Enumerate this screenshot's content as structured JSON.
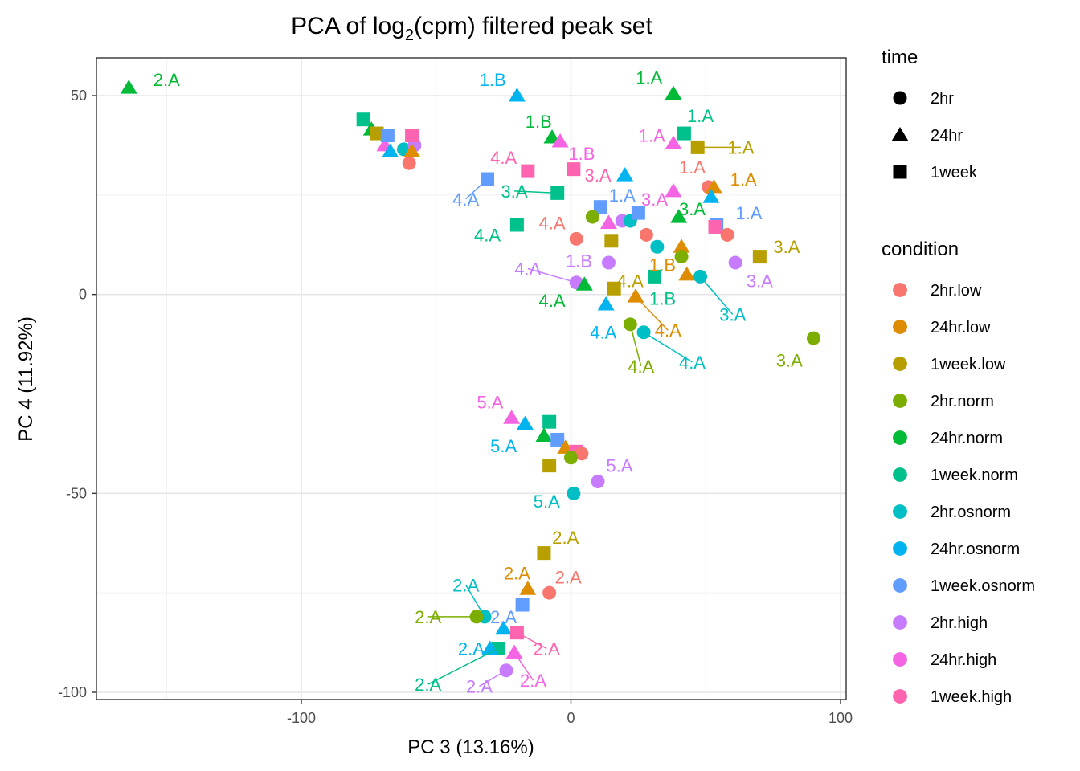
{
  "chart_data": {
    "type": "scatter",
    "title": "PCA of log",
    "title_sub": "2",
    "title_rest": "(cpm) filtered peak set",
    "xlabel": "PC 3 (13.16%)",
    "ylabel": "PC 4 (11.92%)",
    "xlim": [
      -176,
      101
    ],
    "ylim": [
      -102,
      60
    ],
    "xticks": [
      -100,
      0,
      100
    ],
    "yticks": [
      -100,
      -50,
      0,
      50
    ],
    "xtick_labels": [
      "-100",
      "0",
      "100"
    ],
    "ytick_labels": [
      "-100",
      "-50",
      "0",
      "50"
    ],
    "grid": true,
    "legend_position": "right",
    "shape_legend": {
      "title": "time",
      "items": [
        {
          "label": "2hr",
          "shape": "circle"
        },
        {
          "label": "24hr",
          "shape": "triangle"
        },
        {
          "label": "1week",
          "shape": "square"
        }
      ]
    },
    "color_legend": {
      "title": "condition",
      "items": [
        {
          "label": "2hr.low",
          "color": "#F8766D"
        },
        {
          "label": "24hr.low",
          "color": "#DE8C00"
        },
        {
          "label": "1week.low",
          "color": "#B79F00"
        },
        {
          "label": "2hr.norm",
          "color": "#7CAE00"
        },
        {
          "label": "24hr.norm",
          "color": "#00BA38"
        },
        {
          "label": "1week.norm",
          "color": "#00C08B"
        },
        {
          "label": "2hr.osnorm",
          "color": "#00BFC4"
        },
        {
          "label": "24hr.osnorm",
          "color": "#00B4F0"
        },
        {
          "label": "1week.osnorm",
          "color": "#619CFF"
        },
        {
          "label": "2hr.high",
          "color": "#C77CFF"
        },
        {
          "label": "24hr.high",
          "color": "#F564E3"
        },
        {
          "label": "1week.high",
          "color": "#FF64B0"
        }
      ]
    },
    "points": [
      {
        "x": -164,
        "y": 52,
        "c": "24hr.norm",
        "s": "triangle",
        "label": "2.A",
        "lx": -150,
        "ly": 54
      },
      {
        "x": -77,
        "y": 44,
        "c": "1week.norm",
        "s": "square"
      },
      {
        "x": -74,
        "y": 41.5,
        "c": "24hr.norm",
        "s": "triangle"
      },
      {
        "x": -72,
        "y": 40.5,
        "c": "1week.low",
        "s": "square"
      },
      {
        "x": -69,
        "y": 37.5,
        "c": "24hr.high",
        "s": "triangle"
      },
      {
        "x": -68,
        "y": 40,
        "c": "1week.osnorm",
        "s": "square"
      },
      {
        "x": -67,
        "y": 36,
        "c": "24hr.osnorm",
        "s": "triangle"
      },
      {
        "x": -62,
        "y": 36.5,
        "c": "2hr.osnorm",
        "s": "circle"
      },
      {
        "x": -60,
        "y": 33,
        "c": "2hr.low",
        "s": "circle"
      },
      {
        "x": -58,
        "y": 37.5,
        "c": "2hr.high",
        "s": "circle"
      },
      {
        "x": -59,
        "y": 40,
        "c": "1week.high",
        "s": "square"
      },
      {
        "x": -59,
        "y": 36,
        "c": "24hr.low",
        "s": "triangle"
      },
      {
        "x": -20,
        "y": 50,
        "c": "24hr.osnorm",
        "s": "triangle",
        "label": "1.B",
        "lx": -29,
        "ly": 54
      },
      {
        "x": 38,
        "y": 50.5,
        "c": "24hr.norm",
        "s": "triangle",
        "label": "1.A",
        "lx": 29,
        "ly": 54.5
      },
      {
        "x": 42,
        "y": 40.5,
        "c": "1week.norm",
        "s": "square",
        "label": "1.A",
        "lx": 48,
        "ly": 45
      },
      {
        "x": -7,
        "y": 39.5,
        "c": "24hr.norm",
        "s": "triangle",
        "label": "1.B",
        "lx": -12,
        "ly": 43.5
      },
      {
        "x": -4,
        "y": 38.5,
        "c": "24hr.high",
        "s": "triangle",
        "label": "1.B",
        "lx": 4,
        "ly": 35.5
      },
      {
        "x": 38,
        "y": 38,
        "c": "24hr.high",
        "s": "triangle",
        "label": "1.A",
        "lx": 30,
        "ly": 40
      },
      {
        "x": 47,
        "y": 37,
        "c": "1week.low",
        "s": "square",
        "label": "1.A",
        "lx": 63,
        "ly": 37,
        "line": true
      },
      {
        "x": -16,
        "y": 31,
        "c": "1week.high",
        "s": "square",
        "label": "4.A",
        "lx": -25,
        "ly": 34.5
      },
      {
        "x": 1,
        "y": 31.5,
        "c": "1week.high",
        "s": "square",
        "label": "3.A",
        "lx": 10,
        "ly": 30
      },
      {
        "x": 20,
        "y": 30,
        "c": "24hr.osnorm",
        "s": "triangle"
      },
      {
        "x": -31,
        "y": 29,
        "c": "1week.osnorm",
        "s": "square",
        "label": "4.A",
        "lx": -39,
        "ly": 24,
        "line": true
      },
      {
        "x": -5,
        "y": 25.5,
        "c": "1week.norm",
        "s": "square",
        "label": "3.A",
        "lx": -21,
        "ly": 26,
        "line": true
      },
      {
        "x": 38,
        "y": 26,
        "c": "24hr.high",
        "s": "triangle",
        "label": "3.A",
        "lx": 31,
        "ly": 24
      },
      {
        "x": 51,
        "y": 27,
        "c": "2hr.low",
        "s": "circle",
        "label": "1.A",
        "lx": 45,
        "ly": 32
      },
      {
        "x": 53,
        "y": 27,
        "c": "24hr.low",
        "s": "triangle",
        "label": "1.A",
        "lx": 64,
        "ly": 29
      },
      {
        "x": 11,
        "y": 22,
        "c": "1week.osnorm",
        "s": "square",
        "label": "1.A",
        "lx": 19,
        "ly": 25
      },
      {
        "x": 19,
        "y": 18.5,
        "c": "2hr.high",
        "s": "circle"
      },
      {
        "x": 22,
        "y": 18.5,
        "c": "2hr.osnorm",
        "s": "circle"
      },
      {
        "x": 25,
        "y": 20.5,
        "c": "1week.osnorm",
        "s": "square"
      },
      {
        "x": 40,
        "y": 19.5,
        "c": "24hr.norm",
        "s": "triangle",
        "label": "3.A",
        "lx": 45,
        "ly": 21.5
      },
      {
        "x": 52,
        "y": 24.5,
        "c": "24hr.osnorm",
        "s": "triangle"
      },
      {
        "x": 54,
        "y": 17.5,
        "c": "1week.osnorm",
        "s": "square",
        "label": "1.A",
        "lx": 66,
        "ly": 20.5
      },
      {
        "x": 53.5,
        "y": 17,
        "c": "1week.high",
        "s": "square"
      },
      {
        "x": 58,
        "y": 15,
        "c": "2hr.low",
        "s": "circle"
      },
      {
        "x": 8,
        "y": 19.5,
        "c": "2hr.norm",
        "s": "circle"
      },
      {
        "x": 14,
        "y": 18,
        "c": "24hr.high",
        "s": "triangle"
      },
      {
        "x": -20,
        "y": 17.5,
        "c": "1week.norm",
        "s": "square",
        "label": "4.A",
        "lx": -31,
        "ly": 15
      },
      {
        "x": 2,
        "y": 14,
        "c": "2hr.low",
        "s": "circle",
        "label": "4.A",
        "lx": -7,
        "ly": 18
      },
      {
        "x": 28,
        "y": 15,
        "c": "2hr.low",
        "s": "circle"
      },
      {
        "x": 15,
        "y": 13.5,
        "c": "1week.low",
        "s": "square"
      },
      {
        "x": 32,
        "y": 12,
        "c": "2hr.osnorm",
        "s": "circle"
      },
      {
        "x": 41,
        "y": 12,
        "c": "24hr.low",
        "s": "triangle"
      },
      {
        "x": 41,
        "y": 9.5,
        "c": "2hr.norm",
        "s": "circle"
      },
      {
        "x": 14,
        "y": 8,
        "c": "2hr.high",
        "s": "circle",
        "label": "1.B",
        "lx": 3,
        "ly": 8.5
      },
      {
        "x": 61,
        "y": 8,
        "c": "2hr.high",
        "s": "circle",
        "label": "3.A",
        "lx": 70,
        "ly": 3.5
      },
      {
        "x": 70,
        "y": 9.5,
        "c": "1week.low",
        "s": "square",
        "label": "3.A",
        "lx": 80,
        "ly": 12
      },
      {
        "x": 2,
        "y": 3,
        "c": "2hr.high",
        "s": "circle",
        "label": "4.A",
        "lx": -16,
        "ly": 6.5,
        "line": true
      },
      {
        "x": 31,
        "y": 4.5,
        "c": "1week.norm",
        "s": "square",
        "label": "1.B",
        "lx": 34,
        "ly": -1
      },
      {
        "x": 43,
        "y": 5,
        "c": "24hr.low",
        "s": "triangle",
        "label": "1.B",
        "lx": 34,
        "ly": 7.5
      },
      {
        "x": 48,
        "y": 4.5,
        "c": "2hr.osnorm",
        "s": "circle",
        "label": "3.A",
        "lx": 60,
        "ly": -5,
        "line": true
      },
      {
        "x": 16,
        "y": 1.5,
        "c": "1week.low",
        "s": "square",
        "label": "4.A",
        "lx": 22,
        "ly": 3.5
      },
      {
        "x": 5,
        "y": 2.5,
        "c": "24hr.norm",
        "s": "triangle",
        "label": "4.A",
        "lx": -7,
        "ly": -1.5
      },
      {
        "x": 24,
        "y": -0.5,
        "c": "24hr.low",
        "s": "triangle",
        "label": "4.A",
        "lx": 36,
        "ly": -9,
        "line": true
      },
      {
        "x": 13,
        "y": -2.5,
        "c": "24hr.osnorm",
        "s": "triangle",
        "label": "4.A",
        "lx": 12,
        "ly": -9.5
      },
      {
        "x": 22,
        "y": -7.5,
        "c": "2hr.norm",
        "s": "circle",
        "label": "4.A",
        "lx": 26,
        "ly": -18,
        "line": true
      },
      {
        "x": 27,
        "y": -9.5,
        "c": "2hr.osnorm",
        "s": "circle",
        "label": "4.A",
        "lx": 45,
        "ly": -17,
        "line": true
      },
      {
        "x": 90,
        "y": -11,
        "c": "2hr.norm",
        "s": "circle",
        "label": "3.A",
        "lx": 81,
        "ly": -16.5
      },
      {
        "x": -22,
        "y": -31,
        "c": "24hr.high",
        "s": "triangle",
        "label": "5.A",
        "lx": -30,
        "ly": -27
      },
      {
        "x": -17,
        "y": -32.5,
        "c": "24hr.osnorm",
        "s": "triangle",
        "label": "5.A",
        "lx": -25,
        "ly": -38
      },
      {
        "x": -8,
        "y": -32,
        "c": "1week.norm",
        "s": "square"
      },
      {
        "x": -10,
        "y": -35.5,
        "c": "24hr.norm",
        "s": "triangle"
      },
      {
        "x": -5,
        "y": -36.5,
        "c": "1week.osnorm",
        "s": "square"
      },
      {
        "x": -2,
        "y": -38.5,
        "c": "24hr.low",
        "s": "triangle"
      },
      {
        "x": 2,
        "y": -39.5,
        "c": "1week.high",
        "s": "square"
      },
      {
        "x": 4,
        "y": -40,
        "c": "2hr.low",
        "s": "circle"
      },
      {
        "x": 0,
        "y": -41,
        "c": "2hr.norm",
        "s": "circle"
      },
      {
        "x": -8,
        "y": -43,
        "c": "1week.low",
        "s": "square"
      },
      {
        "x": 10,
        "y": -47,
        "c": "2hr.high",
        "s": "circle",
        "label": "5.A",
        "lx": 18,
        "ly": -43
      },
      {
        "x": 1,
        "y": -50,
        "c": "2hr.osnorm",
        "s": "circle",
        "label": "5.A",
        "lx": -9,
        "ly": -52
      },
      {
        "x": -10,
        "y": -65,
        "c": "1week.low",
        "s": "square",
        "label": "2.A",
        "lx": -2,
        "ly": -61
      },
      {
        "x": -16,
        "y": -74,
        "c": "24hr.low",
        "s": "triangle",
        "label": "2.A",
        "lx": -20,
        "ly": -70
      },
      {
        "x": -8,
        "y": -75,
        "c": "2hr.low",
        "s": "circle",
        "label": "2.A",
        "lx": -1,
        "ly": -71
      },
      {
        "x": -18,
        "y": -78,
        "c": "1week.osnorm",
        "s": "square",
        "label": "2.A",
        "lx": -25,
        "ly": -81
      },
      {
        "x": -32,
        "y": -81,
        "c": "2hr.osnorm",
        "s": "circle",
        "label": "2.A",
        "lx": -39,
        "ly": -73,
        "line": true
      },
      {
        "x": -35,
        "y": -81,
        "c": "2hr.norm",
        "s": "circle",
        "label": "2.A",
        "lx": -53,
        "ly": -81,
        "line": true
      },
      {
        "x": -25,
        "y": -84,
        "c": "24hr.osnorm",
        "s": "triangle"
      },
      {
        "x": -20,
        "y": -85,
        "c": "1week.high",
        "s": "square",
        "label": "2.A",
        "lx": -9,
        "ly": -89,
        "line": true
      },
      {
        "x": -27,
        "y": -89,
        "c": "1week.norm",
        "s": "square",
        "label": "2.A",
        "lx": -53,
        "ly": -98,
        "line": true
      },
      {
        "x": -21,
        "y": -90,
        "c": "24hr.high",
        "s": "triangle",
        "label": "2.A",
        "lx": -14,
        "ly": -97,
        "line": true
      },
      {
        "x": -24,
        "y": -94.5,
        "c": "2hr.high",
        "s": "circle",
        "label": "2.A",
        "lx": -34,
        "ly": -98.5,
        "line": true
      },
      {
        "x": -30,
        "y": -89,
        "c": "24hr.osnorm",
        "s": "triangle",
        "label": "2.A",
        "lx": -37,
        "ly": -89
      }
    ]
  }
}
